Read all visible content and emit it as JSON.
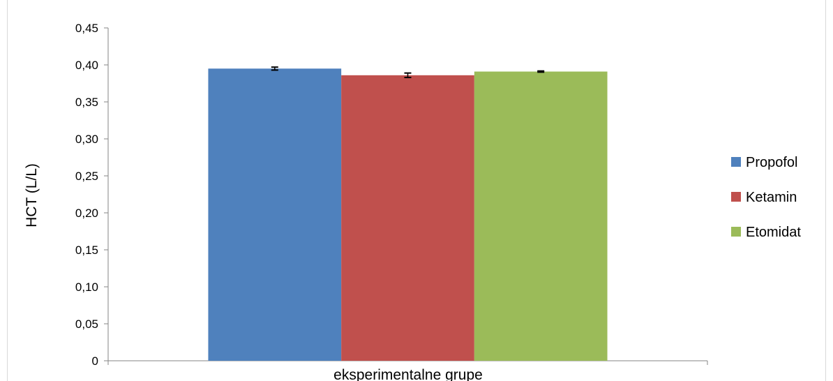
{
  "chart_data": {
    "type": "bar",
    "categories": [
      "eksperimentalne grupe"
    ],
    "series": [
      {
        "name": "Propofol",
        "values": [
          0.395
        ],
        "error": [
          0.002
        ],
        "color": "#4f81bd"
      },
      {
        "name": "Ketamin",
        "values": [
          0.386
        ],
        "error": [
          0.003
        ],
        "color": "#c0504d"
      },
      {
        "name": "Etomidat",
        "values": [
          0.391
        ],
        "error": [
          0.0008
        ],
        "color": "#9bbb59"
      }
    ],
    "xlabel": "eksperimentalne grupe",
    "ylabel": "HCT (L/L)",
    "ylim": [
      0,
      0.45
    ],
    "yticks": [
      "0",
      "0,05",
      "0,10",
      "0,15",
      "0,20",
      "0,25",
      "0,30",
      "0,35",
      "0,40",
      "0,45"
    ],
    "ytick_values": [
      0,
      0.05,
      0.1,
      0.15,
      0.2,
      0.25,
      0.3,
      0.35,
      0.4,
      0.45
    ],
    "grid": false,
    "legend": "right"
  }
}
